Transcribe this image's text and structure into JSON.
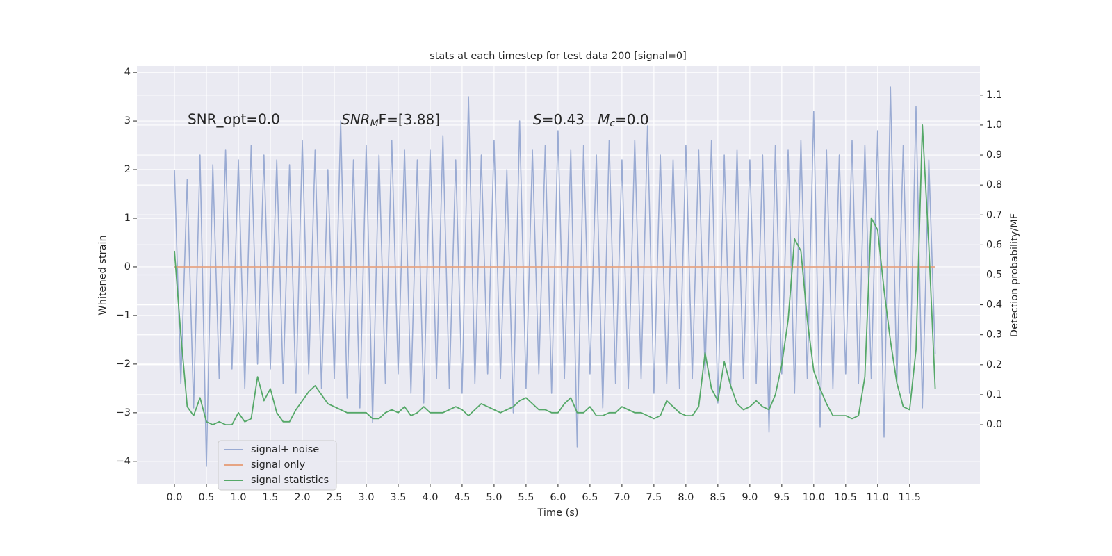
{
  "chart_data": {
    "type": "line",
    "title": "stats at each timestep for test data 200 [signal=0]",
    "xlabel": "Time (s)",
    "ylabel": "Whitened strain",
    "y2label": "Detection probability/MF",
    "annotations": [
      "SNR_opt=0.0",
      [
        "SNR",
        "M",
        "F=[3.88]"
      ],
      [
        "S",
        "=0.43   ",
        "M",
        "c",
        "=0.0"
      ]
    ],
    "x": [
      0.0,
      0.1,
      0.2,
      0.3,
      0.4,
      0.5,
      0.6,
      0.7,
      0.8,
      0.9,
      1.0,
      1.1,
      1.2,
      1.3,
      1.4,
      1.5,
      1.6,
      1.7,
      1.8,
      1.9,
      2.0,
      2.1,
      2.2,
      2.3,
      2.4,
      2.5,
      2.6,
      2.7,
      2.8,
      2.9,
      3.0,
      3.1,
      3.2,
      3.3,
      3.4,
      3.5,
      3.6,
      3.7,
      3.8,
      3.9,
      4.0,
      4.1,
      4.2,
      4.3,
      4.4,
      4.5,
      4.6,
      4.7,
      4.8,
      4.9,
      5.0,
      5.1,
      5.2,
      5.3,
      5.4,
      5.5,
      5.6,
      5.7,
      5.8,
      5.9,
      6.0,
      6.1,
      6.2,
      6.3,
      6.4,
      6.5,
      6.6,
      6.7,
      6.8,
      6.9,
      7.0,
      7.1,
      7.2,
      7.3,
      7.4,
      7.5,
      7.6,
      7.7,
      7.8,
      7.9,
      8.0,
      8.1,
      8.2,
      8.3,
      8.4,
      8.5,
      8.6,
      8.7,
      8.8,
      8.9,
      9.0,
      9.1,
      9.2,
      9.3,
      9.4,
      9.5,
      9.6,
      9.7,
      9.8,
      9.9,
      10.0,
      10.1,
      10.2,
      10.3,
      10.4,
      10.5,
      10.6,
      10.7,
      10.8,
      10.9,
      11.0,
      11.1,
      11.2,
      11.3,
      11.4,
      11.5,
      11.6,
      11.7,
      11.8,
      11.9
    ],
    "series": [
      {
        "name": "signal+ noise",
        "color": "#9aabd3",
        "values": [
          2.0,
          -2.4,
          1.8,
          -2.9,
          2.3,
          -4.1,
          2.1,
          -2.3,
          2.4,
          -2.1,
          2.2,
          -2.5,
          2.5,
          -2.0,
          2.3,
          -2.1,
          2.2,
          -2.4,
          2.1,
          -2.6,
          2.6,
          -2.2,
          2.4,
          -2.5,
          2.0,
          -2.3,
          3.0,
          -2.7,
          2.2,
          -2.9,
          2.5,
          -3.2,
          2.3,
          -2.4,
          2.6,
          -2.2,
          2.4,
          -2.6,
          2.2,
          -2.8,
          2.4,
          -2.3,
          2.7,
          -2.5,
          2.2,
          -2.6,
          3.5,
          -2.4,
          2.3,
          -2.2,
          2.6,
          -2.3,
          2.0,
          -3.0,
          3.0,
          -2.5,
          2.4,
          -2.2,
          2.5,
          -2.6,
          2.8,
          -2.3,
          2.4,
          -3.7,
          2.5,
          -2.2,
          2.3,
          -2.9,
          2.6,
          -2.4,
          2.2,
          -2.5,
          2.6,
          -2.3,
          2.9,
          -2.6,
          2.3,
          -2.4,
          2.2,
          -2.5,
          2.5,
          -2.3,
          2.4,
          -2.2,
          2.6,
          -2.8,
          2.3,
          -2.5,
          2.4,
          -2.3,
          2.2,
          -2.4,
          2.3,
          -3.4,
          2.5,
          -2.2,
          2.4,
          -2.6,
          2.6,
          -2.3,
          3.2,
          -3.3,
          2.4,
          -2.5,
          2.3,
          -2.2,
          2.6,
          -2.4,
          2.5,
          -2.3,
          2.8,
          -3.5,
          3.7,
          -2.4,
          2.5,
          -2.6,
          3.3,
          -2.9,
          2.2,
          -1.8
        ]
      },
      {
        "name": "signal only",
        "color": "#e6a483",
        "values": [
          0,
          0,
          0,
          0,
          0,
          0,
          0,
          0,
          0,
          0,
          0,
          0,
          0,
          0,
          0,
          0,
          0,
          0,
          0,
          0,
          0,
          0,
          0,
          0,
          0,
          0,
          0,
          0,
          0,
          0,
          0,
          0,
          0,
          0,
          0,
          0,
          0,
          0,
          0,
          0,
          0,
          0,
          0,
          0,
          0,
          0,
          0,
          0,
          0,
          0,
          0,
          0,
          0,
          0,
          0,
          0,
          0,
          0,
          0,
          0,
          0,
          0,
          0,
          0,
          0,
          0,
          0,
          0,
          0,
          0,
          0,
          0,
          0,
          0,
          0,
          0,
          0,
          0,
          0,
          0,
          0,
          0,
          0,
          0,
          0,
          0,
          0,
          0,
          0,
          0,
          0,
          0,
          0,
          0,
          0,
          0,
          0,
          0,
          0,
          0,
          0,
          0,
          0,
          0,
          0,
          0,
          0,
          0,
          0,
          0,
          0,
          0,
          0,
          0,
          0,
          0,
          0,
          0,
          0,
          0
        ]
      },
      {
        "name": "signal statistics",
        "color": "#55a868",
        "axis": "y2",
        "values": [
          0.58,
          0.3,
          0.06,
          0.03,
          0.09,
          0.01,
          0.0,
          0.01,
          0.0,
          0.0,
          0.04,
          0.01,
          0.02,
          0.16,
          0.08,
          0.12,
          0.04,
          0.01,
          0.01,
          0.05,
          0.08,
          0.11,
          0.13,
          0.1,
          0.07,
          0.06,
          0.05,
          0.04,
          0.04,
          0.04,
          0.04,
          0.02,
          0.02,
          0.04,
          0.05,
          0.04,
          0.06,
          0.03,
          0.04,
          0.06,
          0.04,
          0.04,
          0.04,
          0.05,
          0.06,
          0.05,
          0.03,
          0.05,
          0.07,
          0.06,
          0.05,
          0.04,
          0.05,
          0.06,
          0.08,
          0.09,
          0.07,
          0.05,
          0.05,
          0.04,
          0.04,
          0.07,
          0.09,
          0.04,
          0.04,
          0.06,
          0.03,
          0.03,
          0.04,
          0.04,
          0.06,
          0.05,
          0.04,
          0.04,
          0.03,
          0.02,
          0.03,
          0.08,
          0.06,
          0.04,
          0.03,
          0.03,
          0.06,
          0.24,
          0.12,
          0.08,
          0.21,
          0.13,
          0.07,
          0.05,
          0.06,
          0.08,
          0.06,
          0.05,
          0.1,
          0.2,
          0.35,
          0.62,
          0.58,
          0.35,
          0.18,
          0.12,
          0.07,
          0.03,
          0.03,
          0.03,
          0.02,
          0.03,
          0.16,
          0.69,
          0.65,
          0.45,
          0.28,
          0.14,
          0.06,
          0.05,
          0.25,
          1.0,
          0.6,
          0.12
        ]
      }
    ],
    "xlim": [
      -0.587,
      12.6
    ],
    "ylim": [
      -4.46,
      4.13
    ],
    "y2lim": [
      -0.197,
      1.197
    ],
    "xticks": [
      {
        "value": 0,
        "label": "0.0"
      },
      0.5,
      {
        "value": 1,
        "label": "1.0"
      },
      1.5,
      {
        "value": 2,
        "label": "2.0"
      },
      2.5,
      {
        "value": 3,
        "label": "3.0"
      },
      3.5,
      {
        "value": 4,
        "label": "4.0"
      },
      4.5,
      {
        "value": 5,
        "label": "5.0"
      },
      5.5,
      {
        "value": 6,
        "label": "6.0"
      },
      6.5,
      {
        "value": 7,
        "label": "7.0"
      },
      7.5,
      {
        "value": 8,
        "label": "8.0"
      },
      8.5,
      {
        "value": 9,
        "label": "9.0"
      },
      9.5,
      {
        "value": 10,
        "label": "10.0"
      },
      10.5,
      {
        "value": 11,
        "label": "11.0"
      },
      11.5
    ],
    "yticks": [
      {
        "value": -4,
        "label": "−4"
      },
      {
        "value": -3,
        "label": "−3"
      },
      {
        "value": -2,
        "label": "−2"
      },
      {
        "value": -1,
        "label": "−1"
      },
      0,
      1,
      2,
      3,
      4
    ],
    "y2ticks": [
      {
        "value": 0,
        "label": "0.0"
      },
      0.1,
      0.2,
      0.3,
      0.4,
      0.5,
      0.6,
      0.7,
      0.8,
      0.9,
      {
        "value": 1,
        "label": "1.0"
      },
      1.1
    ],
    "grid": true,
    "legend": "lower left"
  }
}
